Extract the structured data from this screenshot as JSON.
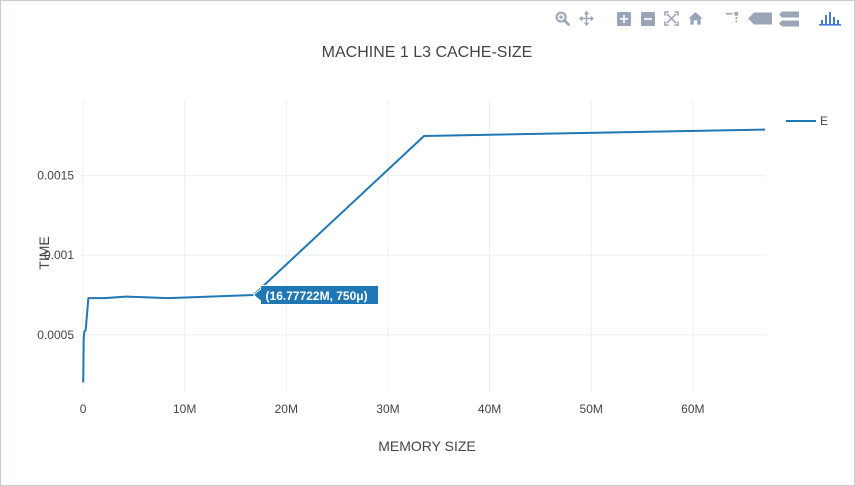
{
  "modebar": {
    "buttons": [
      {
        "icon": "zoom-icon"
      },
      {
        "icon": "pan-icon"
      },
      {
        "icon": "zoom-in-icon"
      },
      {
        "icon": "zoom-out-icon"
      },
      {
        "icon": "autoscale-icon"
      },
      {
        "icon": "reset-axes-icon"
      },
      {
        "icon": "spike-lines-icon"
      },
      {
        "icon": "hover-closest-icon"
      },
      {
        "icon": "hover-compare-icon"
      },
      {
        "icon": "plotly-logo-icon"
      }
    ],
    "icon_color": "#9aa6b8",
    "logo_color": "#447adb"
  },
  "chart_data": {
    "type": "line",
    "title": "MACHINE 1 L3 CACHE-SIZE",
    "xlabel": "MEMORY SIZE",
    "ylabel": "TIME",
    "xlim": [
      -0.3,
      67.2
    ],
    "ylim": [
      0.00014,
      0.00197
    ],
    "x_ticks": [
      0,
      10,
      20,
      30,
      40,
      50,
      60
    ],
    "x_tick_labels": [
      "0",
      "10M",
      "20M",
      "30M",
      "40M",
      "50M",
      "60M"
    ],
    "y_ticks": [
      0.0005,
      0.001,
      0.0015
    ],
    "y_tick_labels": [
      "0.0005",
      "0.001",
      "0.0015"
    ],
    "grid": true,
    "legend_position": "top-right",
    "series": [
      {
        "name": "E",
        "color": "#1f77b4",
        "x": [
          0.016,
          0.065,
          0.131,
          0.262,
          0.524,
          1.05,
          2.1,
          4.19,
          8.39,
          16.78,
          33.55,
          67.11
        ],
        "y": [
          0.0002,
          0.00048,
          0.00052,
          0.00053,
          0.00073,
          0.00073,
          0.00073,
          0.00074,
          0.00073,
          0.00075,
          0.00175,
          0.00179
        ]
      }
    ],
    "hover": {
      "label": "(16.77722M, 750μ)",
      "x": 16.77722,
      "y": 0.00075
    }
  }
}
